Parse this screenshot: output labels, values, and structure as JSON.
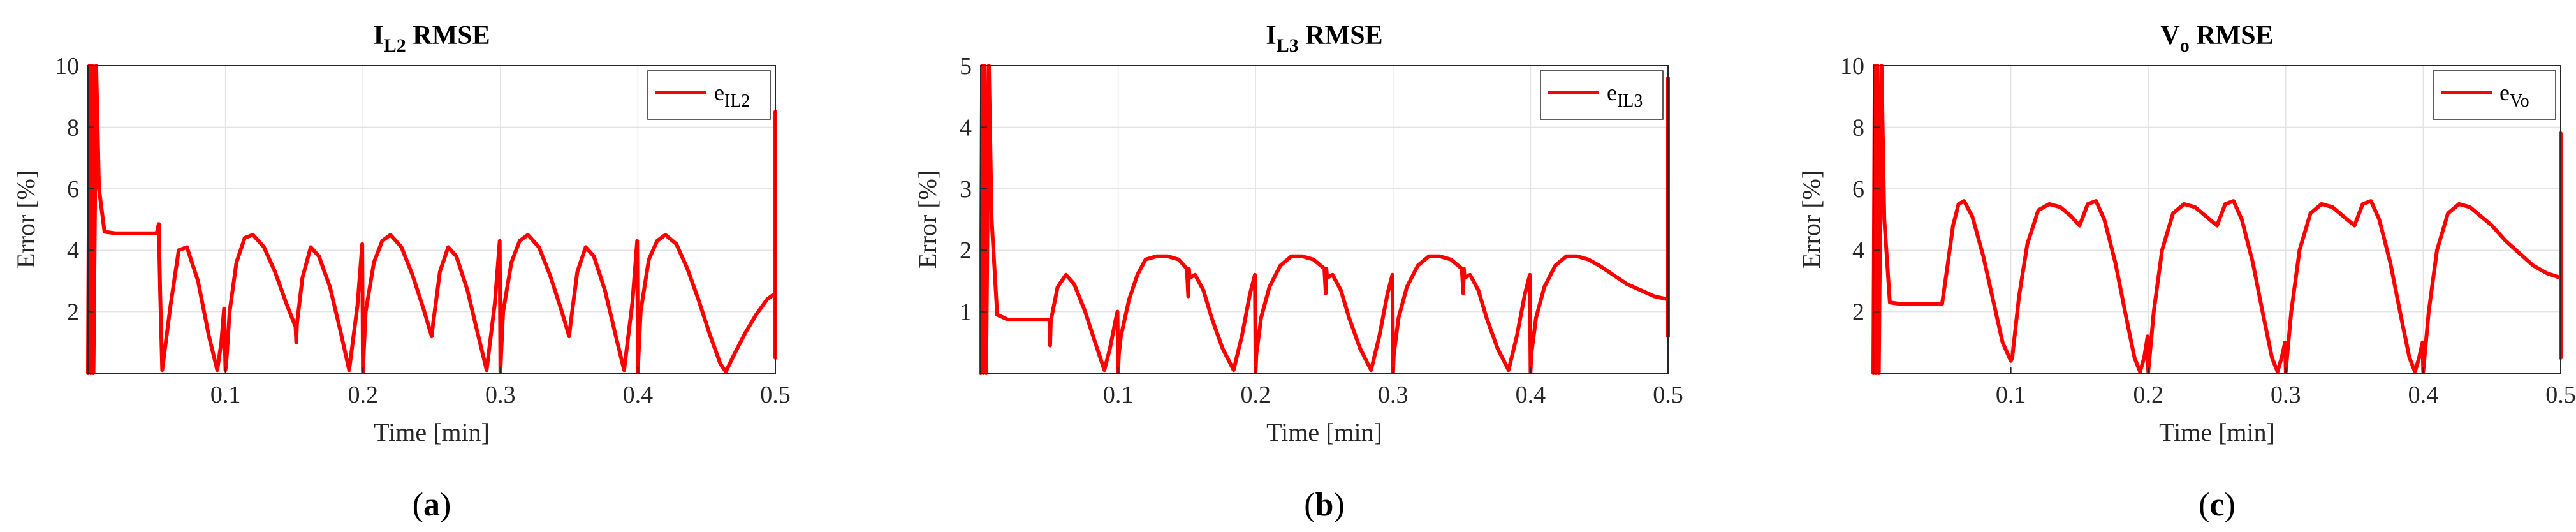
{
  "colors": {
    "series": "#ff0000",
    "grid": "#e3e3e3",
    "axis": "#262626"
  },
  "chart_data": [
    {
      "type": "line",
      "title": {
        "base": "I",
        "sub": "L2",
        "rest": " RMSE"
      },
      "xlabel": "Time [min]",
      "ylabel": "Error [%]",
      "xlim": [
        0,
        0.5
      ],
      "ylim": [
        0,
        10
      ],
      "xticks": [
        0.1,
        0.2,
        0.3,
        0.4,
        0.5
      ],
      "xtick_labels": [
        "0.1",
        "0.2",
        "0.3",
        "0.4",
        "0.5"
      ],
      "yticks": [
        2,
        4,
        6,
        8,
        10
      ],
      "ytick_labels": [
        "2",
        "4",
        "6",
        "8",
        "10"
      ],
      "grid": true,
      "legend": {
        "position": "top-right",
        "base": "e",
        "sub": "IL2"
      },
      "caption": {
        "open": "(",
        "letter": "a",
        "close": ")"
      },
      "series": [
        {
          "name": "eIL2",
          "x": [
            0,
            0.001,
            0.002,
            0.003,
            0.004,
            0.006,
            0.008,
            0.012,
            0.02,
            0.03,
            0.04,
            0.05,
            0.0515,
            0.0525,
            0.054,
            0.06,
            0.066,
            0.072,
            0.08,
            0.088,
            0.094,
            0.097,
            0.099,
            0.1,
            0.101,
            0.103,
            0.108,
            0.114,
            0.12,
            0.128,
            0.136,
            0.144,
            0.151,
            0.1515,
            0.152,
            0.156,
            0.162,
            0.168,
            0.176,
            0.184,
            0.19,
            0.196,
            0.1995,
            0.2,
            0.2005,
            0.202,
            0.208,
            0.214,
            0.22,
            0.228,
            0.236,
            0.244,
            0.25,
            0.251,
            0.256,
            0.262,
            0.268,
            0.276,
            0.284,
            0.29,
            0.296,
            0.2995,
            0.3,
            0.3005,
            0.302,
            0.308,
            0.314,
            0.32,
            0.328,
            0.336,
            0.344,
            0.35,
            0.351,
            0.356,
            0.362,
            0.368,
            0.376,
            0.384,
            0.39,
            0.396,
            0.3995,
            0.4,
            0.4005,
            0.402,
            0.408,
            0.414,
            0.42,
            0.428,
            0.436,
            0.444,
            0.452,
            0.46,
            0.464,
            0.47,
            0.478,
            0.486,
            0.494,
            0.5,
            0.5,
            0.5
          ],
          "y": [
            0,
            10,
            0,
            10,
            0,
            10,
            6,
            4.6,
            4.55,
            4.55,
            4.55,
            4.55,
            4.85,
            2.6,
            0.1,
            2.2,
            4.0,
            4.1,
            3.0,
            1.2,
            0.1,
            1.0,
            2.1,
            0.1,
            0.6,
            2.0,
            3.6,
            4.4,
            4.5,
            4.1,
            3.3,
            2.3,
            1.5,
            1.0,
            1.6,
            3.1,
            4.1,
            3.8,
            2.8,
            1.3,
            0.1,
            2.2,
            4.2,
            0.05,
            0.6,
            2.0,
            3.6,
            4.3,
            4.5,
            4.1,
            3.2,
            2.1,
            1.2,
            1.6,
            3.3,
            4.1,
            3.8,
            2.7,
            1.2,
            0.1,
            2.3,
            4.3,
            0.05,
            0.6,
            2.0,
            3.6,
            4.3,
            4.5,
            4.1,
            3.2,
            2.1,
            1.2,
            1.6,
            3.3,
            4.1,
            3.8,
            2.7,
            1.2,
            0.1,
            2.3,
            4.3,
            0.05,
            0.6,
            2.0,
            3.7,
            4.3,
            4.5,
            4.2,
            3.4,
            2.4,
            1.3,
            0.3,
            0.05,
            0.6,
            1.3,
            1.9,
            2.4,
            2.6,
            8.5,
            0.5
          ]
        }
      ]
    },
    {
      "type": "line",
      "title": {
        "base": "I",
        "sub": "L3",
        "rest": " RMSE"
      },
      "xlabel": "Time [min]",
      "ylabel": "Error [%]",
      "xlim": [
        0,
        0.5
      ],
      "ylim": [
        0,
        5
      ],
      "xticks": [
        0.1,
        0.2,
        0.3,
        0.4,
        0.5
      ],
      "xtick_labels": [
        "0.1",
        "0.2",
        "0.3",
        "0.4",
        "0.5"
      ],
      "yticks": [
        1,
        2,
        3,
        4,
        5
      ],
      "ytick_labels": [
        "1",
        "2",
        "3",
        "4",
        "5"
      ],
      "grid": true,
      "legend": {
        "position": "top-right",
        "base": "e",
        "sub": "IL3"
      },
      "caption": {
        "open": "(",
        "letter": "b",
        "close": ")"
      },
      "series": [
        {
          "name": "eIL3",
          "x": [
            0,
            0.001,
            0.002,
            0.003,
            0.004,
            0.006,
            0.008,
            0.012,
            0.02,
            0.03,
            0.04,
            0.05,
            0.0505,
            0.051,
            0.056,
            0.062,
            0.068,
            0.076,
            0.084,
            0.09,
            0.094,
            0.098,
            0.0995,
            0.1,
            0.1005,
            0.102,
            0.108,
            0.114,
            0.12,
            0.128,
            0.136,
            0.144,
            0.15,
            0.151,
            0.1515,
            0.152,
            0.156,
            0.162,
            0.168,
            0.176,
            0.184,
            0.19,
            0.196,
            0.1995,
            0.2,
            0.2005,
            0.204,
            0.21,
            0.218,
            0.226,
            0.234,
            0.242,
            0.25,
            0.251,
            0.2515,
            0.252,
            0.256,
            0.262,
            0.268,
            0.276,
            0.284,
            0.29,
            0.296,
            0.2995,
            0.3,
            0.3005,
            0.304,
            0.31,
            0.318,
            0.326,
            0.334,
            0.342,
            0.35,
            0.351,
            0.3515,
            0.352,
            0.356,
            0.362,
            0.368,
            0.376,
            0.384,
            0.39,
            0.396,
            0.3995,
            0.4,
            0.4005,
            0.404,
            0.41,
            0.418,
            0.426,
            0.434,
            0.442,
            0.45,
            0.46,
            0.47,
            0.48,
            0.49,
            0.5,
            0.5,
            0.5
          ],
          "y": [
            0,
            5,
            0,
            5,
            0,
            5,
            2.5,
            0.95,
            0.87,
            0.87,
            0.87,
            0.87,
            0.45,
            0.85,
            1.4,
            1.6,
            1.45,
            1.0,
            0.45,
            0.05,
            0.4,
            0.85,
            1.0,
            0.02,
            0.3,
            0.6,
            1.2,
            1.6,
            1.85,
            1.9,
            1.9,
            1.85,
            1.7,
            1.25,
            1.7,
            1.55,
            1.6,
            1.35,
            0.9,
            0.4,
            0.05,
            0.6,
            1.3,
            1.6,
            0.02,
            0.3,
            0.9,
            1.4,
            1.75,
            1.9,
            1.9,
            1.85,
            1.7,
            1.3,
            1.7,
            1.55,
            1.6,
            1.35,
            0.9,
            0.4,
            0.05,
            0.6,
            1.3,
            1.6,
            0.02,
            0.3,
            0.9,
            1.4,
            1.75,
            1.9,
            1.9,
            1.85,
            1.7,
            1.3,
            1.7,
            1.55,
            1.6,
            1.35,
            0.9,
            0.4,
            0.05,
            0.6,
            1.3,
            1.6,
            0.02,
            0.3,
            0.9,
            1.4,
            1.75,
            1.9,
            1.9,
            1.85,
            1.75,
            1.6,
            1.45,
            1.35,
            1.25,
            1.2,
            4.8,
            0.6
          ]
        }
      ]
    },
    {
      "type": "line",
      "title": {
        "base": "V",
        "sub": "o",
        "rest": " RMSE"
      },
      "xlabel": "Time [min]",
      "ylabel": "Error [%]",
      "xlim": [
        0,
        0.5
      ],
      "ylim": [
        0,
        10
      ],
      "xticks": [
        0.1,
        0.2,
        0.3,
        0.4,
        0.5
      ],
      "xtick_labels": [
        "0.1",
        "0.2",
        "0.3",
        "0.4",
        "0.5"
      ],
      "yticks": [
        2,
        4,
        6,
        8,
        10
      ],
      "ytick_labels": [
        "2",
        "4",
        "6",
        "8",
        "10"
      ],
      "grid": true,
      "legend": {
        "position": "top-right",
        "base": "e",
        "sub": "Vo"
      },
      "caption": {
        "open": "(",
        "letter": "c",
        "close": ")"
      },
      "series": [
        {
          "name": "eVo",
          "x": [
            0,
            0.001,
            0.002,
            0.003,
            0.004,
            0.006,
            0.008,
            0.012,
            0.02,
            0.03,
            0.04,
            0.05,
            0.054,
            0.058,
            0.062,
            0.066,
            0.072,
            0.08,
            0.088,
            0.094,
            0.099,
            0.1,
            0.101,
            0.106,
            0.112,
            0.12,
            0.128,
            0.136,
            0.144,
            0.15,
            0.156,
            0.162,
            0.168,
            0.176,
            0.184,
            0.19,
            0.194,
            0.197,
            0.1995,
            0.2,
            0.2005,
            0.204,
            0.21,
            0.218,
            0.226,
            0.234,
            0.242,
            0.25,
            0.256,
            0.262,
            0.268,
            0.276,
            0.284,
            0.29,
            0.294,
            0.297,
            0.2995,
            0.3,
            0.3005,
            0.304,
            0.31,
            0.318,
            0.326,
            0.334,
            0.342,
            0.35,
            0.356,
            0.362,
            0.368,
            0.376,
            0.384,
            0.39,
            0.394,
            0.397,
            0.3995,
            0.4,
            0.4005,
            0.404,
            0.41,
            0.418,
            0.426,
            0.434,
            0.442,
            0.45,
            0.46,
            0.47,
            0.48,
            0.49,
            0.5,
            0.5,
            0.5
          ],
          "y": [
            0,
            10,
            0,
            10,
            0,
            10,
            5,
            2.3,
            2.25,
            2.25,
            2.25,
            2.25,
            3.5,
            4.8,
            5.5,
            5.6,
            5.1,
            3.8,
            2.2,
            1.0,
            0.5,
            0.4,
            0.5,
            2.5,
            4.2,
            5.3,
            5.5,
            5.4,
            5.1,
            4.8,
            5.5,
            5.6,
            5.0,
            3.6,
            1.8,
            0.5,
            0.05,
            0.5,
            1.2,
            0.05,
            0.3,
            2.0,
            4.0,
            5.2,
            5.5,
            5.4,
            5.1,
            4.8,
            5.5,
            5.6,
            5.0,
            3.6,
            1.8,
            0.5,
            0.05,
            0.5,
            1.0,
            0.05,
            0.3,
            2.0,
            4.0,
            5.2,
            5.5,
            5.4,
            5.1,
            4.8,
            5.5,
            5.6,
            5.0,
            3.6,
            1.8,
            0.5,
            0.05,
            0.5,
            1.0,
            0.05,
            0.3,
            2.0,
            4.0,
            5.2,
            5.5,
            5.4,
            5.1,
            4.8,
            4.3,
            3.9,
            3.5,
            3.25,
            3.1,
            7.8,
            0.5
          ]
        }
      ]
    }
  ]
}
